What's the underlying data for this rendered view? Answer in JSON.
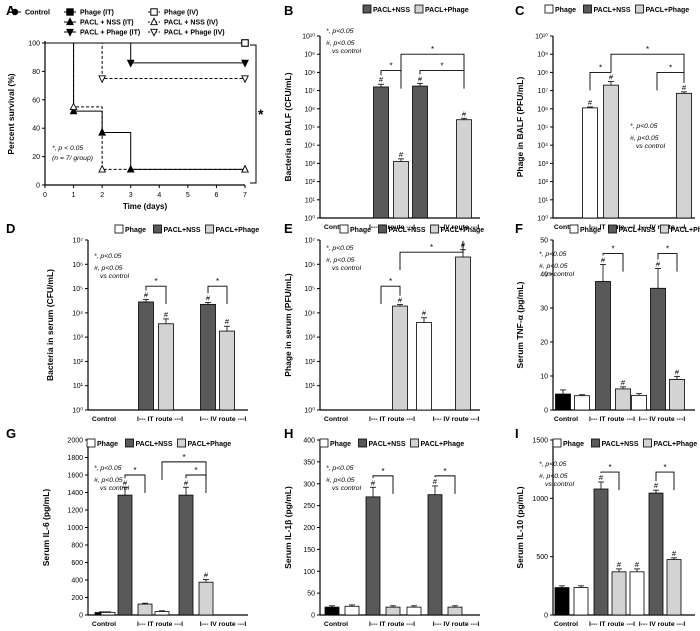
{
  "colors": {
    "phage": "#ffffff",
    "pacl_nss": "#595959",
    "pacl_phage": "#d3d3d3",
    "control": "#000000",
    "edge": "#000000"
  },
  "group_labels": [
    "Control",
    "I--- IT route ---I",
    "I--- IV route ---I"
  ],
  "legend": {
    "phage": "Phage",
    "pacl_nss": "PACL+NSS",
    "pacl_phage": "PACL+Phage"
  },
  "chart_data": [
    {
      "panel": "A",
      "type": "line",
      "xlabel": "Time (days)",
      "ylabel": "Percent survival (%)",
      "xlim": [
        0,
        7
      ],
      "ylim": [
        0,
        100
      ],
      "xticks": [
        "0",
        "1",
        "2",
        "3",
        "4",
        "5",
        "6",
        "7"
      ],
      "yticks": [
        "0",
        "20",
        "40",
        "60",
        "80",
        "100"
      ],
      "legend": [
        "Control",
        "Phage (IT)",
        "PACL + NSS (IT)",
        "PACL + Phage (IT)",
        "Phage (IV)",
        "PACL + NSS (IV)",
        "PACL + Phage (IV)"
      ],
      "annotation_lines": [
        "*, p < 0.05",
        "(n = 7/ group)"
      ],
      "significance": "*",
      "series": [
        {
          "name": "Control",
          "marker": "circle",
          "dash": false,
          "x": [
            0,
            7
          ],
          "y": [
            100,
            100
          ]
        },
        {
          "name": "Phage (IT)",
          "marker": "square",
          "dash": false,
          "x": [
            0,
            7
          ],
          "y": [
            100,
            100
          ]
        },
        {
          "name": "PACL + NSS (IT)",
          "marker": "triangle-up",
          "dash": false,
          "x": [
            0,
            1,
            1,
            2,
            2,
            3,
            3,
            7
          ],
          "y": [
            100,
            100,
            52,
            52,
            37,
            37,
            11,
            11
          ]
        },
        {
          "name": "PACL + Phage (IT)",
          "marker": "triangle-down",
          "dash": false,
          "x": [
            0,
            1,
            1,
            3,
            3,
            7
          ],
          "y": [
            100,
            100,
            100,
            100,
            86,
            86
          ]
        },
        {
          "name": "Phage (IV)",
          "marker": "square-open",
          "dash": true,
          "x": [
            0,
            7
          ],
          "y": [
            100,
            100
          ]
        },
        {
          "name": "PACL + NSS (IV)",
          "marker": "triangle-up-open",
          "dash": true,
          "x": [
            0,
            1,
            1,
            2,
            2,
            7
          ],
          "y": [
            100,
            100,
            55,
            55,
            11,
            11
          ]
        },
        {
          "name": "PACL + Phage (IV)",
          "marker": "triangle-down-open",
          "dash": true,
          "x": [
            0,
            2,
            2,
            7
          ],
          "y": [
            100,
            100,
            75,
            75
          ]
        }
      ]
    },
    {
      "panel": "B",
      "type": "bar",
      "scale": "log",
      "ylabel": "Bacteria in BALF (CFU/mL)",
      "ylim": [
        0,
        10
      ],
      "tick_labels": [
        "10⁰",
        "10¹",
        "10²",
        "10³",
        "10⁴",
        "10⁵",
        "10⁶",
        "10⁷",
        "10⁸",
        "10⁹",
        "10¹⁰"
      ],
      "annotation_lines": [
        "*, p<0.05",
        "#, p<0.05",
        "vs control"
      ],
      "bars": [
        {
          "group": 1,
          "series": "pacl_nss",
          "value": 7.2,
          "err": 0.15,
          "mark": "#"
        },
        {
          "group": 1,
          "series": "pacl_phage",
          "value": 3.1,
          "err": 0.15,
          "mark": "#"
        },
        {
          "group": 2,
          "series": "pacl_nss",
          "value": 7.25,
          "err": 0.15,
          "mark": "#"
        },
        {
          "group": 2,
          "series": "pacl_phage",
          "value": 5.4,
          "err": 0.08,
          "mark": "#"
        }
      ],
      "brackets": [
        {
          "from": 0,
          "to": 1,
          "level": 8.1,
          "label": "*"
        },
        {
          "from": 2,
          "to": 3,
          "level": 8.1,
          "label": "*"
        },
        {
          "from": 1,
          "to": 3,
          "level": 9.0,
          "label": "*"
        }
      ]
    },
    {
      "panel": "C",
      "type": "bar",
      "scale": "log",
      "ylabel": "Phage in BALF (PFU/mL)",
      "ylim": [
        0,
        10
      ],
      "tick_labels": [
        "10⁰",
        "10¹",
        "10²",
        "10³",
        "10⁴",
        "10⁵",
        "10⁶",
        "10⁷",
        "10⁸",
        "10⁹",
        "10¹⁰"
      ],
      "annotation_lines": [
        "*, p<0.05",
        "#, p<0.05",
        "vs control"
      ],
      "bars": [
        {
          "group": 1,
          "series": "phage",
          "value": 6.05,
          "err": 0.05,
          "mark": "#"
        },
        {
          "group": 1,
          "series": "pacl_phage",
          "value": 7.3,
          "err": 0.2,
          "mark": "#"
        },
        {
          "group": 2,
          "series": "phage",
          "value": 0,
          "err": 0,
          "mark": ""
        },
        {
          "group": 2,
          "series": "pacl_phage",
          "value": 6.85,
          "err": 0.08,
          "mark": "#"
        }
      ],
      "brackets": [
        {
          "from": 0,
          "to": 1,
          "level": 8.0,
          "label": "*"
        },
        {
          "from": 2,
          "to": 3,
          "level": 8.0,
          "label": "*"
        },
        {
          "from": 1,
          "to": 3,
          "level": 9.0,
          "label": "*"
        }
      ]
    },
    {
      "panel": "D",
      "type": "bar",
      "scale": "log",
      "ylabel": "Bacteria in serum (CFU/mL)",
      "ylim": [
        0,
        7
      ],
      "tick_labels": [
        "10⁰",
        "10¹",
        "10²",
        "10³",
        "10⁴",
        "10⁵",
        "10⁶",
        "10⁷"
      ],
      "annotation_lines": [
        "*, p<0.05",
        "#, p<0.05",
        "vs control"
      ],
      "bars": [
        {
          "group": 1,
          "series": "pacl_nss",
          "value": 4.45,
          "err": 0.1,
          "mark": "#"
        },
        {
          "group": 1,
          "series": "pacl_phage",
          "value": 3.55,
          "err": 0.2,
          "mark": "#"
        },
        {
          "group": 2,
          "series": "pacl_nss",
          "value": 4.35,
          "err": 0.08,
          "mark": "#"
        },
        {
          "group": 2,
          "series": "pacl_phage",
          "value": 3.25,
          "err": 0.2,
          "mark": "#"
        }
      ],
      "brackets": [
        {
          "from": 0,
          "to": 1,
          "level": 5.1,
          "label": "*"
        },
        {
          "from": 2,
          "to": 3,
          "level": 5.1,
          "label": "*"
        }
      ]
    },
    {
      "panel": "E",
      "type": "bar",
      "scale": "log",
      "ylabel": "Phage in serum (PFU/mL)",
      "ylim": [
        0,
        7
      ],
      "tick_labels": [
        "10⁰",
        "10¹",
        "10²",
        "10³",
        "10⁴",
        "10⁵",
        "10⁶",
        "10⁷"
      ],
      "annotation_lines": [
        "*, p<0.05",
        "#, p<0.05",
        "vs control"
      ],
      "bars": [
        {
          "group": 1,
          "series": "phage",
          "value": 0,
          "err": 0,
          "mark": ""
        },
        {
          "group": 1,
          "series": "pacl_phage",
          "value": 4.28,
          "err": 0.06,
          "mark": "#"
        },
        {
          "group": 2,
          "series": "phage",
          "value": 3.6,
          "err": 0.2,
          "mark": "#"
        },
        {
          "group": 2,
          "series": "pacl_phage",
          "value": 6.3,
          "err": 0.3,
          "mark": "#"
        }
      ],
      "brackets": [
        {
          "from": 0,
          "to": 1,
          "level": 5.1,
          "label": "*",
          "hook": true
        },
        {
          "from": 1,
          "to": 3,
          "level": 6.5,
          "label": "*",
          "hook": true
        }
      ]
    },
    {
      "panel": "F",
      "type": "bar",
      "scale": "linear",
      "ylabel": "Serum TNF-α (pg/mL)",
      "ylim": [
        0,
        50
      ],
      "tick_labels": [
        "0",
        "10",
        "20",
        "30",
        "40",
        "50"
      ],
      "tick_values": [
        0,
        10,
        20,
        30,
        40,
        50
      ],
      "annotation_lines": [
        "*, p<0.05",
        "#, p<0.05",
        "vs control"
      ],
      "control": {
        "value": 4.7,
        "err": 1.2
      },
      "bars": [
        {
          "group": 1,
          "series": "phage",
          "value": 4.2,
          "err": 0.3,
          "mark": ""
        },
        {
          "group": 1,
          "series": "pacl_nss",
          "value": 37.8,
          "err": 5.0,
          "mark": "#"
        },
        {
          "group": 1,
          "series": "pacl_phage",
          "value": 6.2,
          "err": 0.6,
          "mark": "#"
        },
        {
          "group": 2,
          "series": "phage",
          "value": 4.3,
          "err": 0.5,
          "mark": ""
        },
        {
          "group": 2,
          "series": "pacl_nss",
          "value": 35.8,
          "err": 5.8,
          "mark": "#"
        },
        {
          "group": 2,
          "series": "pacl_phage",
          "value": 9.0,
          "err": 0.9,
          "mark": "#"
        }
      ],
      "brackets": [
        {
          "from": 1,
          "to": 2,
          "level": 46,
          "label": "*"
        },
        {
          "from": 4,
          "to": 5,
          "level": 46,
          "label": "*"
        }
      ]
    },
    {
      "panel": "G",
      "type": "bar",
      "scale": "linear",
      "ylabel": "Serum IL-6 (pg/mL)",
      "ylim": [
        0,
        2000
      ],
      "tick_labels": [
        "0",
        "200",
        "400",
        "600",
        "800",
        "1000",
        "1200",
        "1400",
        "1600",
        "1800",
        "2000"
      ],
      "tick_values": [
        0,
        200,
        400,
        600,
        800,
        1000,
        1200,
        1400,
        1600,
        1800,
        2000
      ],
      "annotation_lines": [
        "*, p<0.05",
        "#, p<0.05",
        "vs control"
      ],
      "control": {
        "value": 28,
        "err": 8
      },
      "bars": [
        {
          "group": 1,
          "series": "phage",
          "value": 30,
          "err": 6,
          "mark": ""
        },
        {
          "group": 1,
          "series": "pacl_nss",
          "value": 1370,
          "err": 90,
          "mark": "#"
        },
        {
          "group": 1,
          "series": "pacl_phage",
          "value": 125,
          "err": 10,
          "mark": ""
        },
        {
          "group": 2,
          "series": "phage",
          "value": 40,
          "err": 8,
          "mark": ""
        },
        {
          "group": 2,
          "series": "pacl_nss",
          "value": 1370,
          "err": 90,
          "mark": "#"
        },
        {
          "group": 2,
          "series": "pacl_phage",
          "value": 375,
          "err": 30,
          "mark": "#"
        }
      ],
      "brackets": [
        {
          "from": 1,
          "to": 2,
          "level": 1600,
          "label": "*"
        },
        {
          "from": 4,
          "to": 5,
          "level": 1600,
          "label": "*"
        },
        {
          "from": 3,
          "to": 5,
          "level": 1750,
          "label": "*"
        }
      ]
    },
    {
      "panel": "H",
      "type": "bar",
      "scale": "linear",
      "ylabel": "Serum IL-1β (pg/mL)",
      "ylim": [
        0,
        400
      ],
      "tick_labels": [
        "0",
        "50",
        "100",
        "150",
        "200",
        "250",
        "300",
        "350",
        "400"
      ],
      "tick_values": [
        0,
        50,
        100,
        150,
        200,
        250,
        300,
        350,
        400
      ],
      "annotation_lines": [
        "*, p<0.05",
        "#, p<0.05",
        "vs control"
      ],
      "control": {
        "value": 18,
        "err": 3
      },
      "bars": [
        {
          "group": 1,
          "series": "phage",
          "value": 20,
          "err": 3,
          "mark": ""
        },
        {
          "group": 1,
          "series": "pacl_nss",
          "value": 270,
          "err": 22,
          "mark": "#"
        },
        {
          "group": 1,
          "series": "pacl_phage",
          "value": 18,
          "err": 3,
          "mark": ""
        },
        {
          "group": 2,
          "series": "phage",
          "value": 18,
          "err": 3,
          "mark": ""
        },
        {
          "group": 2,
          "series": "pacl_nss",
          "value": 275,
          "err": 20,
          "mark": "#"
        },
        {
          "group": 2,
          "series": "pacl_phage",
          "value": 18,
          "err": 3,
          "mark": ""
        }
      ],
      "brackets": [
        {
          "from": 1,
          "to": 2,
          "level": 318,
          "label": "*"
        },
        {
          "from": 4,
          "to": 5,
          "level": 318,
          "label": "*"
        }
      ]
    },
    {
      "panel": "I",
      "type": "bar",
      "scale": "linear",
      "ylabel": "Serum IL-10 (pg/mL)",
      "ylim": [
        0,
        1500
      ],
      "tick_labels": [
        "0",
        "500",
        "1000",
        "1500"
      ],
      "tick_values": [
        0,
        500,
        1000,
        1500
      ],
      "annotation_lines": [
        "*, p<0.05",
        "#, p<0.05",
        "vs control"
      ],
      "control": {
        "value": 235,
        "err": 15
      },
      "bars": [
        {
          "group": 1,
          "series": "phage",
          "value": 235,
          "err": 15,
          "mark": ""
        },
        {
          "group": 1,
          "series": "pacl_nss",
          "value": 1080,
          "err": 60,
          "mark": "#"
        },
        {
          "group": 1,
          "series": "pacl_phage",
          "value": 370,
          "err": 25,
          "mark": "#"
        },
        {
          "group": 2,
          "series": "phage",
          "value": 370,
          "err": 25,
          "mark": "#"
        },
        {
          "group": 2,
          "series": "pacl_nss",
          "value": 1045,
          "err": 25,
          "mark": "#"
        },
        {
          "group": 2,
          "series": "pacl_phage",
          "value": 475,
          "err": 15,
          "mark": "#"
        }
      ],
      "brackets": [
        {
          "from": 1,
          "to": 2,
          "level": 1225,
          "label": "*"
        },
        {
          "from": 4,
          "to": 5,
          "level": 1225,
          "label": "*"
        }
      ]
    }
  ]
}
